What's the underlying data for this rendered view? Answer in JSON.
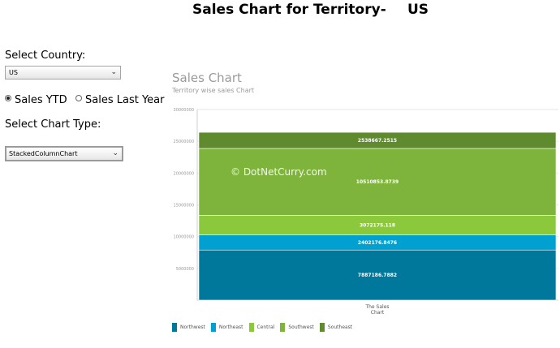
{
  "header": {
    "title": "Sales Chart for Territory-",
    "territory": "US"
  },
  "controls": {
    "country_label": "Select Country:",
    "country_value": "US",
    "radio_ytd_label": "Sales YTD",
    "radio_last_year_label": "Sales Last Year",
    "radio_selected": "ytd",
    "chart_type_label": "Select Chart Type:",
    "chart_type_value": "StackedColumnChart"
  },
  "watermark": "© DotNetCurry.com",
  "chart_data": {
    "type": "bar",
    "stacked": true,
    "title": "Sales Chart",
    "subtitle": "Territory wise sales Chart",
    "categories": [
      "The Sales Chart"
    ],
    "ylim": [
      0,
      30000000
    ],
    "y_ticks": [
      "30000000",
      "25000000",
      "20000000",
      "15000000",
      "10000000",
      "5000000"
    ],
    "grid": true,
    "legend_position": "bottom-left",
    "series": [
      {
        "name": "Northwest",
        "values": [
          7887186.7882
        ],
        "label": "7887186.7882",
        "color": "#00789c"
      },
      {
        "name": "Northeast",
        "values": [
          2402176.8476
        ],
        "label": "2402176.8476",
        "color": "#00a0d0"
      },
      {
        "name": "Central",
        "values": [
          3072175.118
        ],
        "label": "3072175.118",
        "color": "#8cc83c"
      },
      {
        "name": "Southwest",
        "values": [
          10510853.8739
        ],
        "label": "10510853.8739",
        "color": "#7eb43c"
      },
      {
        "name": "Southeast",
        "values": [
          2538667.2515
        ],
        "label": "2538667.2515",
        "color": "#5f8a2d"
      }
    ]
  }
}
